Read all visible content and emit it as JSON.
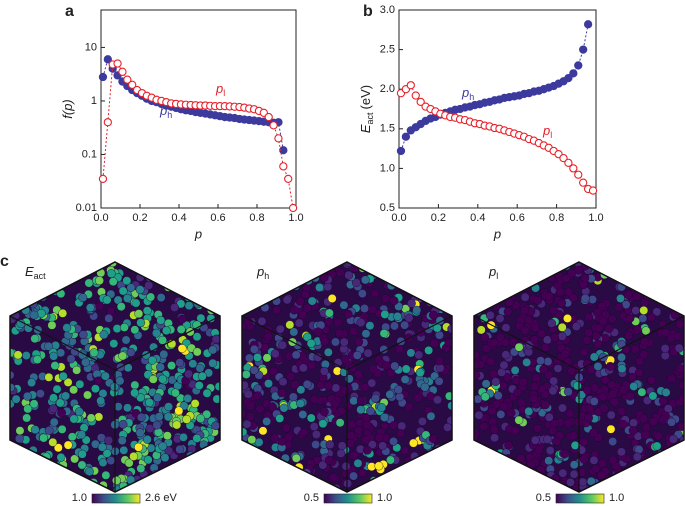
{
  "chart_data": [
    {
      "type": "scatter",
      "label": "a",
      "xlabel": "p",
      "ylabel": "f(p)",
      "log_y": true,
      "xlim": [
        0,
        1
      ],
      "ylim": [
        0.01,
        50
      ],
      "xticks": [
        {
          "value": 0,
          "label": "0.0"
        },
        0.2,
        0.4,
        0.6,
        0.8,
        {
          "value": 1,
          "label": "1.0"
        }
      ],
      "yticks": [
        0.01,
        0.1,
        1,
        10
      ],
      "x": [
        0.01,
        0.035,
        0.06,
        0.085,
        0.11,
        0.135,
        0.16,
        0.185,
        0.21,
        0.235,
        0.26,
        0.285,
        0.31,
        0.335,
        0.36,
        0.385,
        0.41,
        0.435,
        0.46,
        0.485,
        0.51,
        0.535,
        0.56,
        0.585,
        0.61,
        0.635,
        0.66,
        0.685,
        0.71,
        0.735,
        0.76,
        0.785,
        0.81,
        0.835,
        0.86,
        0.885,
        0.91,
        0.935,
        0.96,
        0.985
      ],
      "series": [
        {
          "name": "p",
          "subscript": "h",
          "color": "#3d3a9e",
          "filled": true,
          "values": [
            2.8,
            6,
            4,
            3,
            2.3,
            1.9,
            1.6,
            1.4,
            1.25,
            1.1,
            1.0,
            0.95,
            0.88,
            0.82,
            0.78,
            0.74,
            0.7,
            0.67,
            0.65,
            0.62,
            0.6,
            0.58,
            0.56,
            0.54,
            0.52,
            0.5,
            0.49,
            0.48,
            0.46,
            0.45,
            0.44,
            0.43,
            0.42,
            0.41,
            0.4,
            0.39,
            0.4,
            0.12,
            null,
            null
          ]
        },
        {
          "name": "p",
          "subscript": "l",
          "color": "#e8212a",
          "filled": false,
          "values": [
            0.035,
            0.4,
            4.8,
            5,
            3.5,
            2.5,
            2.0,
            1.6,
            1.4,
            1.25,
            1.15,
            1.05,
            1.0,
            0.95,
            0.9,
            0.88,
            0.86,
            0.85,
            0.84,
            0.83,
            0.82,
            0.82,
            0.81,
            0.8,
            0.8,
            0.8,
            0.79,
            0.78,
            0.77,
            0.75,
            0.72,
            0.7,
            0.65,
            0.6,
            0.5,
            0.35,
            0.2,
            0.06,
            0.035,
            0.01
          ]
        }
      ]
    },
    {
      "type": "scatter",
      "label": "b",
      "xlabel": "p",
      "ylabel": "E",
      "ylabel_sub": "act",
      "ylabel_unit": "(eV)",
      "log_y": false,
      "xlim": [
        0,
        1
      ],
      "ylim": [
        0.5,
        3.0
      ],
      "xticks": [
        {
          "value": 0,
          "label": "0.0"
        },
        0.2,
        0.4,
        0.6,
        0.8,
        {
          "value": 1,
          "label": "1.0"
        }
      ],
      "yticks": [
        0.5,
        {
          "value": 1,
          "label": "1.0"
        },
        1.5,
        {
          "value": 2,
          "label": "2.0"
        },
        2.5,
        {
          "value": 3,
          "label": "3.0"
        }
      ],
      "x": [
        0.01,
        0.035,
        0.06,
        0.085,
        0.11,
        0.135,
        0.16,
        0.185,
        0.21,
        0.235,
        0.26,
        0.285,
        0.31,
        0.335,
        0.36,
        0.385,
        0.41,
        0.435,
        0.46,
        0.485,
        0.51,
        0.535,
        0.56,
        0.585,
        0.61,
        0.635,
        0.66,
        0.685,
        0.71,
        0.735,
        0.76,
        0.785,
        0.81,
        0.835,
        0.86,
        0.885,
        0.91,
        0.935,
        0.96,
        0.985
      ],
      "series": [
        {
          "name": "p",
          "subscript": "h",
          "color": "#3d3a9e",
          "filled": true,
          "values": [
            1.22,
            1.4,
            1.48,
            1.52,
            1.56,
            1.6,
            1.63,
            1.65,
            1.68,
            1.7,
            1.72,
            1.74,
            1.75,
            1.77,
            1.78,
            1.8,
            1.81,
            1.83,
            1.84,
            1.86,
            1.87,
            1.89,
            1.9,
            1.91,
            1.92,
            1.94,
            1.95,
            1.97,
            1.98,
            2.0,
            2.02,
            2.04,
            2.07,
            2.1,
            2.14,
            2.2,
            2.3,
            2.5,
            2.82,
            null
          ]
        },
        {
          "name": "p",
          "subscript": "l",
          "color": "#e8212a",
          "filled": false,
          "values": [
            1.95,
            2.0,
            2.05,
            1.92,
            1.84,
            1.78,
            1.75,
            1.72,
            1.69,
            1.67,
            1.65,
            1.64,
            1.62,
            1.61,
            1.59,
            1.57,
            1.56,
            1.54,
            1.53,
            1.51,
            1.5,
            1.48,
            1.46,
            1.44,
            1.42,
            1.4,
            1.37,
            1.35,
            1.32,
            1.29,
            1.26,
            1.22,
            1.18,
            1.13,
            1.07,
            1.0,
            0.92,
            0.82,
            0.74,
            0.72
          ]
        }
      ]
    }
  ],
  "panel_c": {
    "label": "c",
    "cubes": [
      {
        "title": "E",
        "subscript": "act",
        "bar_min": "1.0",
        "bar_max": "2.6 eV"
      },
      {
        "title": "p",
        "subscript": "h",
        "bar_min": "0.5",
        "bar_max": "1.0"
      },
      {
        "title": "p",
        "subscript": "l",
        "bar_min": "0.5",
        "bar_max": "1.0"
      }
    ]
  }
}
